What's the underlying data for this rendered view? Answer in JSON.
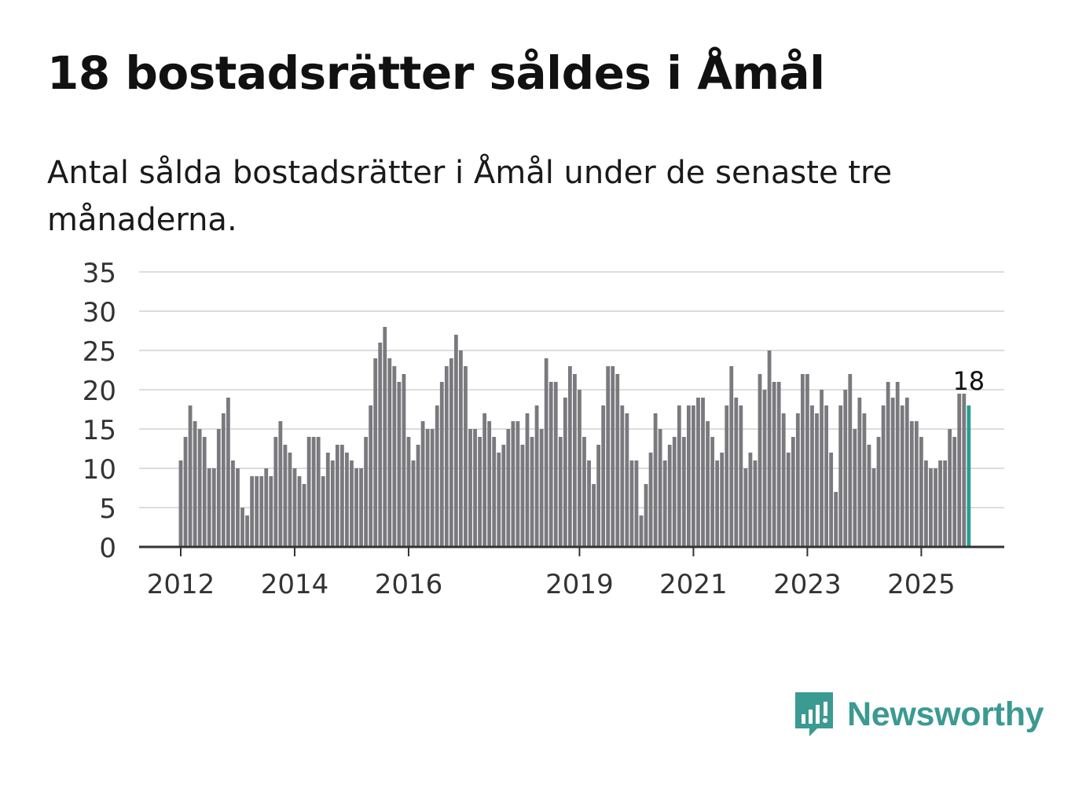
{
  "title": "18 bostadsrätter såldes i Åmål",
  "subtitle": "Antal sålda bostadsrätter i Åmål under de senaste tre månaderna.",
  "brand": {
    "name": "Newsworthy",
    "icon": "newsworthy-logo-icon"
  },
  "colors": {
    "bar": "#7a797e",
    "highlight": "#2a9d93",
    "grid": "#dddddd",
    "axis": "#333333",
    "brand": "#3b9a92"
  },
  "chart_data": {
    "type": "bar",
    "title": "18 bostadsrätter såldes i Åmål",
    "xlabel": "",
    "ylabel": "",
    "ylim": [
      0,
      35
    ],
    "yticks": [
      0,
      5,
      10,
      15,
      20,
      25,
      30,
      35
    ],
    "xticks": [
      {
        "label": "2012",
        "index": 0
      },
      {
        "label": "2014",
        "index": 24
      },
      {
        "label": "2016",
        "index": 48
      },
      {
        "label": "2019",
        "index": 84
      },
      {
        "label": "2021",
        "index": 108
      },
      {
        "label": "2023",
        "index": 132
      },
      {
        "label": "2025",
        "index": 156
      }
    ],
    "start": "2012-01",
    "frequency": "monthly",
    "values": [
      11,
      14,
      18,
      16,
      15,
      14,
      10,
      10,
      15,
      17,
      19,
      11,
      10,
      5,
      4,
      9,
      9,
      9,
      10,
      9,
      14,
      16,
      13,
      12,
      10,
      9,
      8,
      14,
      14,
      14,
      9,
      12,
      11,
      13,
      13,
      12,
      11,
      10,
      10,
      14,
      18,
      24,
      26,
      28,
      24,
      23,
      21,
      22,
      14,
      11,
      13,
      16,
      15,
      15,
      18,
      21,
      23,
      24,
      27,
      25,
      23,
      15,
      15,
      14,
      17,
      16,
      14,
      12,
      13,
      15,
      16,
      16,
      13,
      17,
      14,
      18,
      15,
      24,
      21,
      21,
      14,
      19,
      23,
      22,
      20,
      14,
      11,
      8,
      13,
      18,
      23,
      23,
      22,
      18,
      17,
      11,
      11,
      4,
      8,
      12,
      17,
      15,
      11,
      13,
      14,
      18,
      14,
      18,
      18,
      19,
      19,
      16,
      14,
      11,
      12,
      18,
      23,
      19,
      18,
      10,
      12,
      11,
      22,
      20,
      25,
      21,
      21,
      17,
      12,
      14,
      17,
      22,
      22,
      18,
      17,
      20,
      18,
      12,
      7,
      18,
      20,
      22,
      15,
      19,
      17,
      13,
      10,
      14,
      18,
      21,
      19,
      21,
      18,
      19,
      16,
      16,
      14,
      11,
      10,
      10,
      11,
      11,
      15,
      14,
      19.5,
      19.5,
      18
    ],
    "highlight_last": true,
    "annotation": {
      "label": "18"
    }
  }
}
